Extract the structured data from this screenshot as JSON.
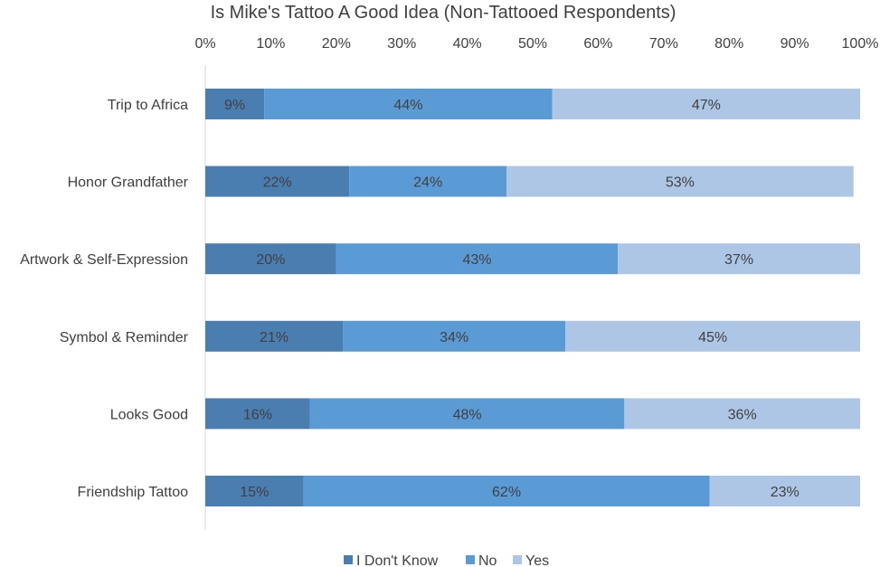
{
  "chart_data": {
    "type": "bar",
    "orientation": "horizontal",
    "stacked": true,
    "title": "Is Mike's Tattoo A Good Idea (Non-Tattooed Respondents)",
    "xlabel": "",
    "ylabel": "",
    "xlim": [
      0,
      100
    ],
    "x_ticks": [
      "0%",
      "10%",
      "20%",
      "30%",
      "40%",
      "50%",
      "60%",
      "70%",
      "80%",
      "90%",
      "100%"
    ],
    "x_axis_position": "top",
    "grid": false,
    "legend_position": "bottom",
    "categories": [
      "Trip to Africa",
      "Honor Grandfather",
      "Artwork & Self-Expression",
      "Symbol & Reminder",
      "Looks Good",
      "Friendship Tattoo"
    ],
    "series": [
      {
        "name": "I Don't Know",
        "color": "#4a7db0",
        "values": [
          9,
          22,
          20,
          21,
          16,
          15
        ],
        "labels": [
          "9%",
          "22%",
          "20%",
          "21%",
          "16%",
          "15%"
        ]
      },
      {
        "name": "No",
        "color": "#5b9bd5",
        "values": [
          44,
          24,
          43,
          34,
          48,
          62
        ],
        "labels": [
          "44%",
          "24%",
          "43%",
          "34%",
          "48%",
          "62%"
        ]
      },
      {
        "name": "Yes",
        "color": "#adc6e6",
        "values": [
          47,
          53,
          37,
          45,
          36,
          23
        ],
        "labels": [
          "47%",
          "53%",
          "37%",
          "45%",
          "36%",
          "23%"
        ]
      }
    ]
  }
}
